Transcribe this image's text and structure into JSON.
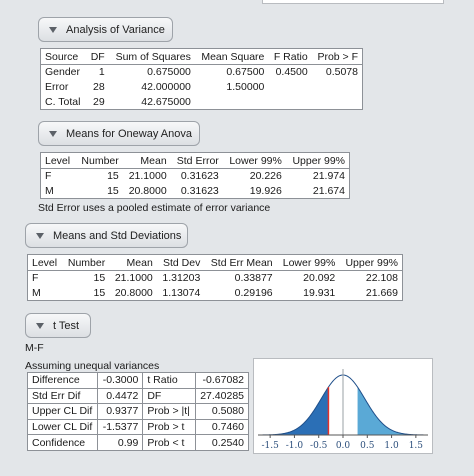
{
  "anova": {
    "title": "Analysis of Variance",
    "headers": [
      "Source",
      "DF",
      "Sum of Squares",
      "Mean Square",
      "F Ratio",
      "Prob > F"
    ],
    "rows": [
      [
        "Gender",
        "1",
        "0.675000",
        "0.67500",
        "0.4500",
        "0.5078"
      ],
      [
        "Error",
        "28",
        "42.000000",
        "1.50000",
        "",
        ""
      ],
      [
        "C. Total",
        "29",
        "42.675000",
        "",
        "",
        ""
      ]
    ]
  },
  "means_oneway": {
    "title": "Means for Oneway Anova",
    "headers": [
      "Level",
      "Number",
      "Mean",
      "Std Error",
      "Lower 99%",
      "Upper 99%"
    ],
    "rows": [
      [
        "F",
        "15",
        "21.1000",
        "0.31623",
        "20.226",
        "21.974"
      ],
      [
        "M",
        "15",
        "20.8000",
        "0.31623",
        "19.926",
        "21.674"
      ]
    ],
    "note": "Std Error uses a pooled estimate of error variance"
  },
  "means_std": {
    "title": "Means and Std Deviations",
    "headers": [
      "Level",
      "Number",
      "Mean",
      "Std Dev",
      "Std Err Mean",
      "Lower 99%",
      "Upper 99%"
    ],
    "rows": [
      [
        "F",
        "15",
        "21.1000",
        "1.31203",
        "0.33877",
        "20.092",
        "22.108"
      ],
      [
        "M",
        "15",
        "20.8000",
        "1.13074",
        "0.29196",
        "19.931",
        "21.669"
      ]
    ]
  },
  "ttest": {
    "title": "t Test",
    "comparison": "M-F",
    "assumption": "Assuming unequal variances",
    "rows": [
      [
        "Difference",
        "-0.3000",
        "t Ratio",
        "-0.67082"
      ],
      [
        "Std Err Dif",
        "0.4472",
        "DF",
        "27.40285"
      ],
      [
        "Upper CL Dif",
        "0.9377",
        "Prob > |t|",
        "0.5080"
      ],
      [
        "Lower CL Dif",
        "-1.5377",
        "Prob > t",
        "0.7460"
      ],
      [
        "Confidence",
        "0.99",
        "Prob < t",
        "0.2540"
      ]
    ]
  },
  "plot": {
    "x_ticks": [
      "-1.5",
      "-1.0",
      "-0.5",
      "0.0",
      "0.5",
      "1.0",
      "1.5"
    ],
    "observed": -0.3,
    "colors": {
      "tail": "#2b6fb6",
      "light_tail": "#5aa9d6",
      "curve": "#1f4f8a",
      "observed_line": "#e0322c"
    }
  }
}
